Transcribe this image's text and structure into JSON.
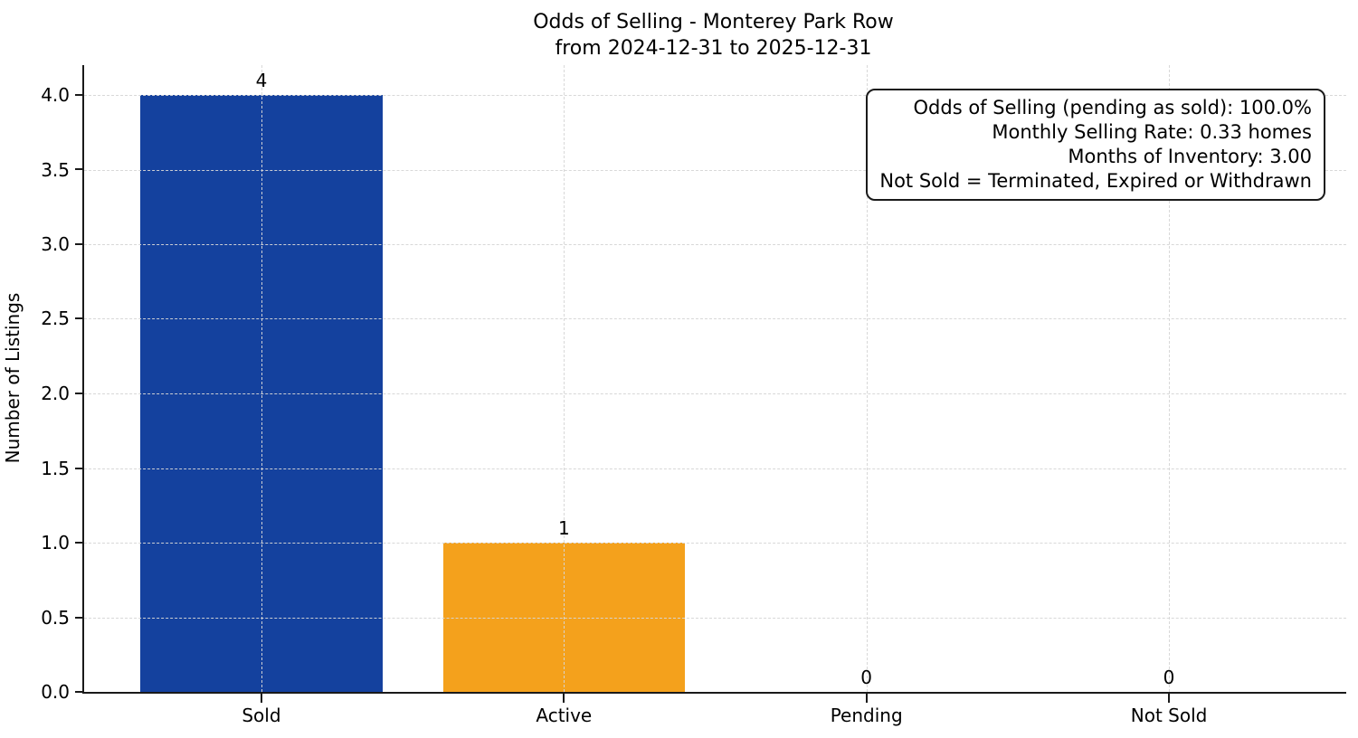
{
  "title": "Odds of Selling - Monterey Park Row",
  "subtitle": "from 2024-12-31 to 2025-12-31",
  "ylabel": "Number of Listings",
  "annotation_box": {
    "lines": [
      "Odds of Selling (pending as sold): 100.0%",
      "Monthly Selling Rate: 0.33 homes",
      "Months of Inventory: 3.00",
      "Not Sold = Terminated, Expired or Withdrawn"
    ]
  },
  "chart_data": {
    "type": "bar",
    "title": "Odds of Selling - Monterey Park Row\nfrom 2024-12-31 to 2025-12-31",
    "xlabel": "",
    "ylabel": "Number of Listings",
    "categories": [
      "Sold",
      "Active",
      "Pending",
      "Not Sold"
    ],
    "values": [
      4,
      1,
      0,
      0
    ],
    "value_labels": [
      "4",
      "1",
      "0",
      "0"
    ],
    "bar_colors": [
      "#14419e",
      "#f4a11c",
      "#14419e",
      "#14419e"
    ],
    "ylim": [
      0,
      4.2
    ],
    "yticks": [
      0.0,
      0.5,
      1.0,
      1.5,
      2.0,
      2.5,
      3.0,
      3.5,
      4.0
    ],
    "ytick_labels": [
      "0.0",
      "0.5",
      "1.0",
      "1.5",
      "2.0",
      "2.5",
      "3.0",
      "3.5",
      "4.0"
    ],
    "xlim": [
      -0.586,
      3.586
    ],
    "bar_width": 0.8,
    "grid": "dashed horizontal and vertical gridlines, drawn over bars",
    "legend": "none",
    "annotation_lines": [
      "Odds of Selling (pending as sold): 100.0%",
      "Monthly Selling Rate: 0.33 homes",
      "Months of Inventory: 3.00",
      "Not Sold = Terminated, Expired or Withdrawn"
    ]
  }
}
